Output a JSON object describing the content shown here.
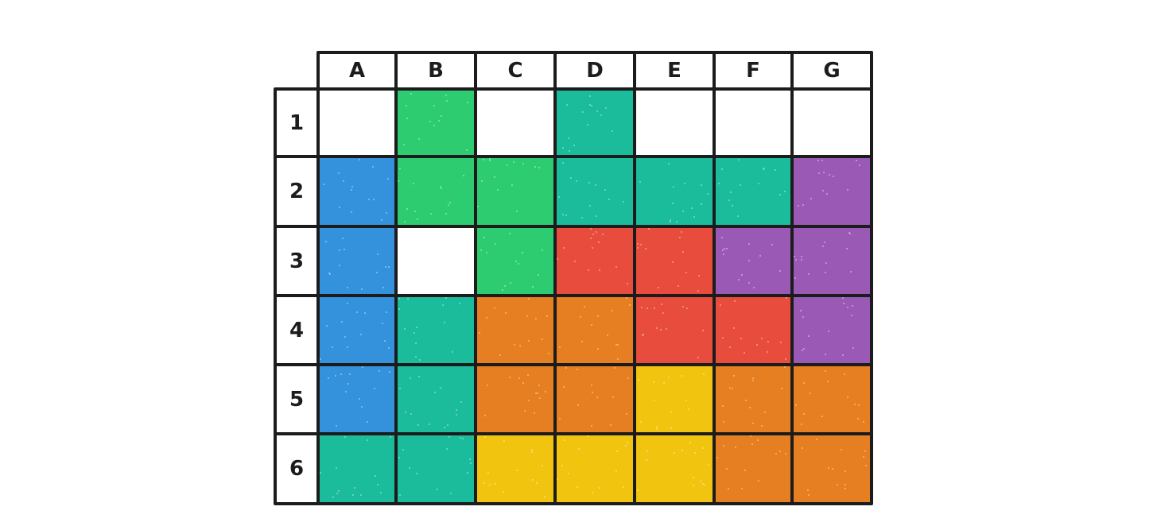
{
  "columns": [
    "A",
    "B",
    "C",
    "D",
    "E",
    "F",
    "G"
  ],
  "rows": [
    "1",
    "2",
    "3",
    "4",
    "5",
    "6"
  ],
  "palette": {
    "empty": "#ffffff",
    "green": "#2ecc71",
    "teal": "#1abc9c",
    "blue": "#3491dc",
    "purple": "#9b59b6",
    "red": "#e74c3c",
    "orange": "#e67e22",
    "yellow": "#f1c40f"
  },
  "grid": [
    [
      "empty",
      "green",
      "empty",
      "teal",
      "empty",
      "empty",
      "empty"
    ],
    [
      "blue",
      "green",
      "green",
      "teal",
      "teal",
      "teal",
      "purple"
    ],
    [
      "blue",
      "empty",
      "green",
      "red",
      "red",
      "purple",
      "purple"
    ],
    [
      "blue",
      "teal",
      "orange",
      "orange",
      "red",
      "red",
      "purple"
    ],
    [
      "blue",
      "teal",
      "orange",
      "orange",
      "yellow",
      "orange",
      "orange"
    ],
    [
      "teal",
      "teal",
      "yellow",
      "yellow",
      "yellow",
      "orange",
      "orange"
    ]
  ]
}
